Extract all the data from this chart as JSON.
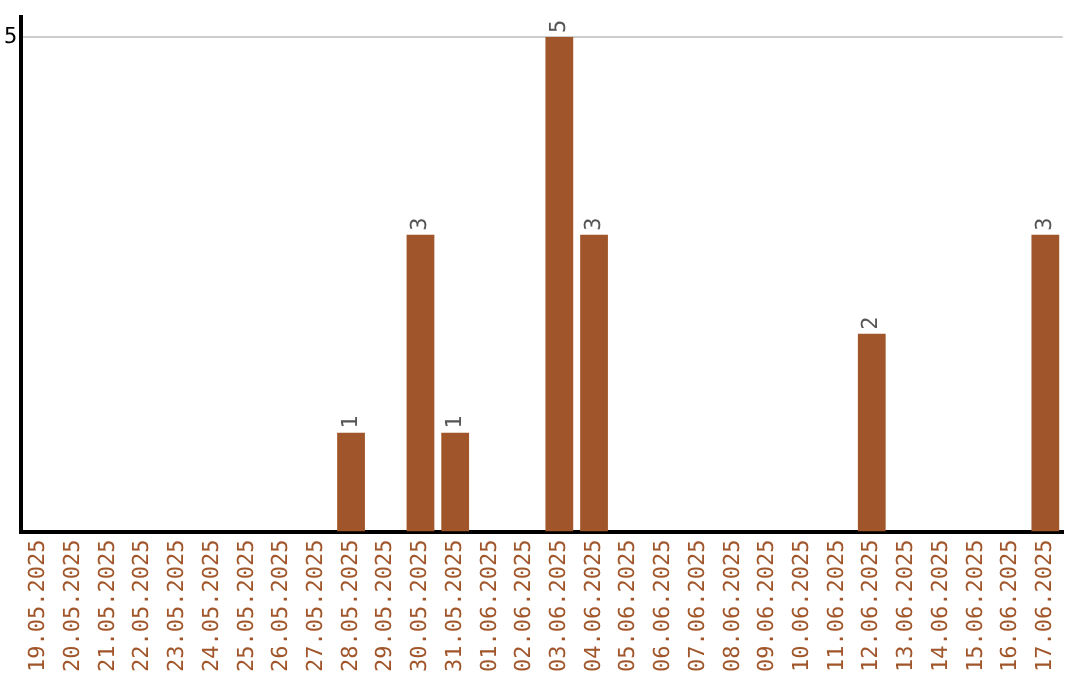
{
  "chart_data": {
    "type": "bar",
    "categories": [
      "19.05.2025",
      "20.05.2025",
      "21.05.2025",
      "22.05.2025",
      "23.05.2025",
      "24.05.2025",
      "25.05.2025",
      "26.05.2025",
      "27.05.2025",
      "28.05.2025",
      "29.05.2025",
      "30.05.2025",
      "31.05.2025",
      "01.06.2025",
      "02.06.2025",
      "03.06.2025",
      "04.06.2025",
      "05.06.2025",
      "06.06.2025",
      "07.06.2025",
      "08.06.2025",
      "09.06.2025",
      "10.06.2025",
      "11.06.2025",
      "12.06.2025",
      "13.06.2025",
      "14.06.2025",
      "15.06.2025",
      "16.06.2025",
      "17.06.2025"
    ],
    "values": [
      0,
      0,
      0,
      0,
      0,
      0,
      0,
      0,
      0,
      1,
      0,
      3,
      1,
      0,
      0,
      5,
      3,
      0,
      0,
      0,
      0,
      0,
      0,
      0,
      2,
      0,
      0,
      0,
      0,
      3
    ],
    "value_labels": [
      null,
      null,
      null,
      null,
      null,
      null,
      null,
      null,
      null,
      "1",
      null,
      "3",
      "1",
      null,
      null,
      "5",
      "3",
      null,
      null,
      null,
      null,
      null,
      null,
      null,
      "2",
      null,
      null,
      null,
      null,
      "3"
    ],
    "color": "#a0562a",
    "ylim": [
      0,
      5.2
    ],
    "yticks": [
      5
    ],
    "grid": "y",
    "legend": false
  }
}
